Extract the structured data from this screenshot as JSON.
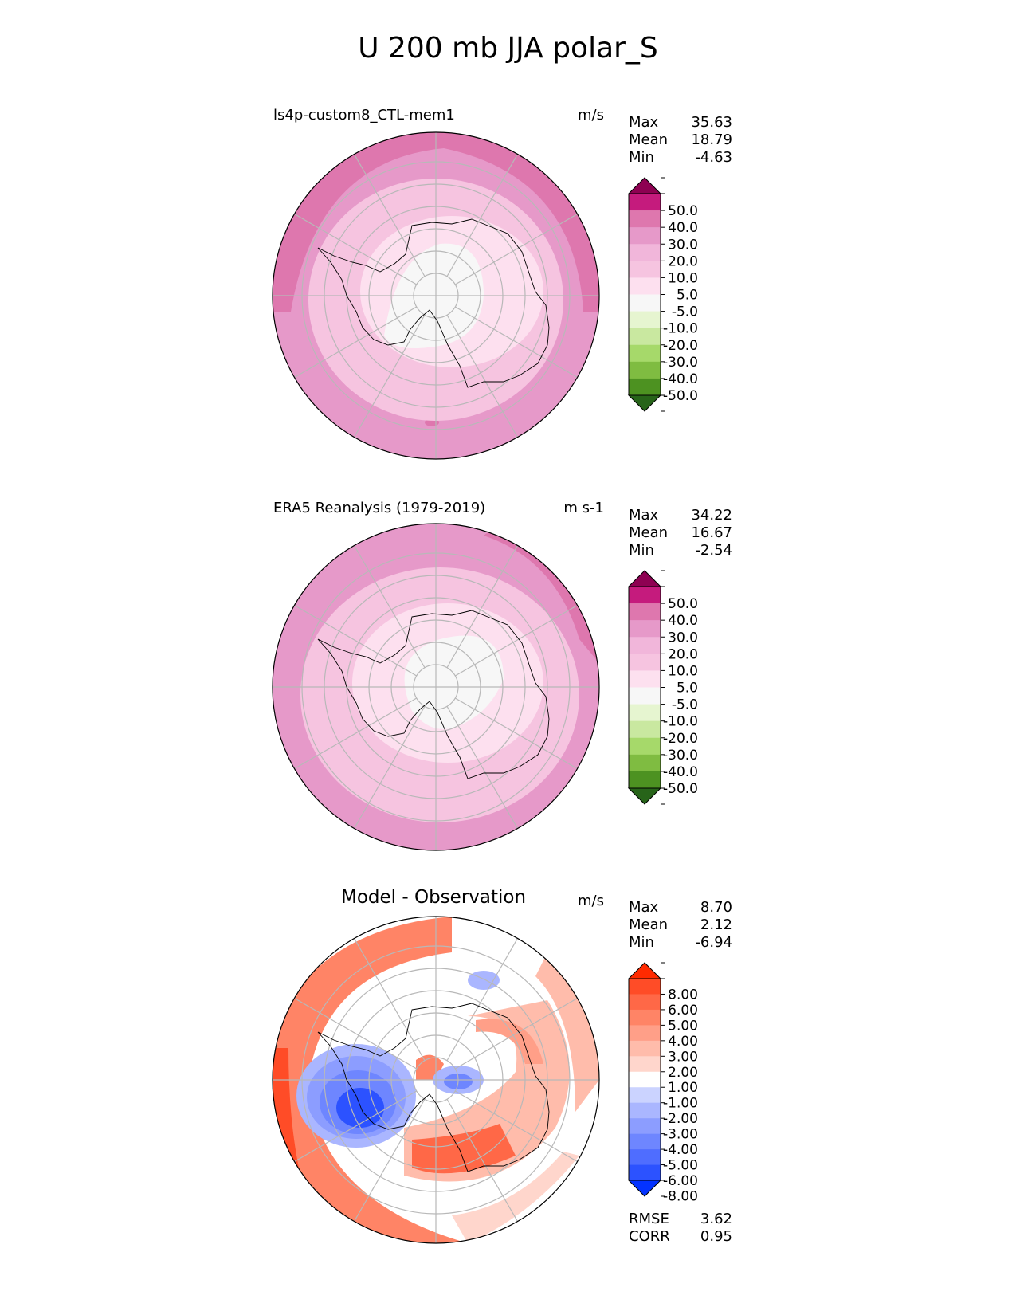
{
  "title": "U 200 mb JJA polar_S",
  "palettes": {
    "abs": [
      "#276419",
      "#4d9221",
      "#7fbc41",
      "#a6d96a",
      "#c9e8a0",
      "#e6f5d0",
      "#f7f7f7",
      "#fde0ef",
      "#f6c4e0",
      "#f1b6da",
      "#e699c9",
      "#de77ae",
      "#c51b7d",
      "#8e0152"
    ],
    "diff": [
      "#0433ff",
      "#2c52ff",
      "#4f6dff",
      "#6e86ff",
      "#8c9dff",
      "#aab6ff",
      "#cbd3ff",
      "#ffffff",
      "#ffd6cc",
      "#ffbcab",
      "#ff9f88",
      "#ff8466",
      "#ff6847",
      "#ff4c27",
      "#ff2a00"
    ]
  },
  "panels": [
    {
      "id": "model",
      "title": "ls4p-custom8_CTL-mem1",
      "units": "m/s",
      "stats": [
        {
          "label": "Max",
          "value": "35.63"
        },
        {
          "label": "Mean",
          "value": "18.79"
        },
        {
          "label": "Min",
          "value": "-4.63"
        }
      ],
      "colorbar_levels": [
        "50.0",
        "40.0",
        "30.0",
        "20.0",
        "10.0",
        "5.0",
        "-5.0",
        "-10.0",
        "-20.0",
        "-30.0",
        "-40.0",
        "-50.0"
      ]
    },
    {
      "id": "obs",
      "title": "ERA5 Reanalysis (1979-2019)",
      "units": "m s-1",
      "stats": [
        {
          "label": "Max",
          "value": "34.22"
        },
        {
          "label": "Mean",
          "value": "16.67"
        },
        {
          "label": "Min",
          "value": "-2.54"
        }
      ],
      "colorbar_levels": [
        "50.0",
        "40.0",
        "30.0",
        "20.0",
        "10.0",
        "5.0",
        "-5.0",
        "-10.0",
        "-20.0",
        "-30.0",
        "-40.0",
        "-50.0"
      ]
    },
    {
      "id": "diff",
      "title": "Model - Observation",
      "units": "m/s",
      "stats": [
        {
          "label": "Max",
          "value": "8.70"
        },
        {
          "label": "Mean",
          "value": "2.12"
        },
        {
          "label": "Min",
          "value": "-6.94"
        }
      ],
      "colorbar_levels": [
        "8.00",
        "6.00",
        "5.00",
        "4.00",
        "3.00",
        "2.00",
        "1.00",
        "-1.00",
        "-2.00",
        "-3.00",
        "-4.00",
        "-5.00",
        "-6.00",
        "-8.00"
      ],
      "extra_stats": [
        {
          "label": "RMSE",
          "value": "3.62"
        },
        {
          "label": "CORR",
          "value": "0.95"
        }
      ]
    }
  ],
  "chart_data": [
    {
      "type": "heatmap",
      "title": "ls4p-custom8_CTL-mem1",
      "projection": "south polar stereographic",
      "units": "m/s",
      "max": 35.63,
      "mean": 18.79,
      "min": -4.63,
      "levels": [
        -50,
        -40,
        -30,
        -20,
        -10,
        -5,
        5,
        10,
        20,
        30,
        40,
        50
      ]
    },
    {
      "type": "heatmap",
      "title": "ERA5 Reanalysis (1979-2019)",
      "projection": "south polar stereographic",
      "units": "m s-1",
      "max": 34.22,
      "mean": 16.67,
      "min": -2.54,
      "levels": [
        -50,
        -40,
        -30,
        -20,
        -10,
        -5,
        5,
        10,
        20,
        30,
        40,
        50
      ]
    },
    {
      "type": "heatmap",
      "title": "Model - Observation",
      "projection": "south polar stereographic",
      "units": "m/s",
      "max": 8.7,
      "mean": 2.12,
      "min": -6.94,
      "rmse": 3.62,
      "corr": 0.95,
      "levels": [
        -8,
        -6,
        -5,
        -4,
        -3,
        -2,
        -1,
        1,
        2,
        3,
        4,
        5,
        6,
        8
      ]
    }
  ]
}
